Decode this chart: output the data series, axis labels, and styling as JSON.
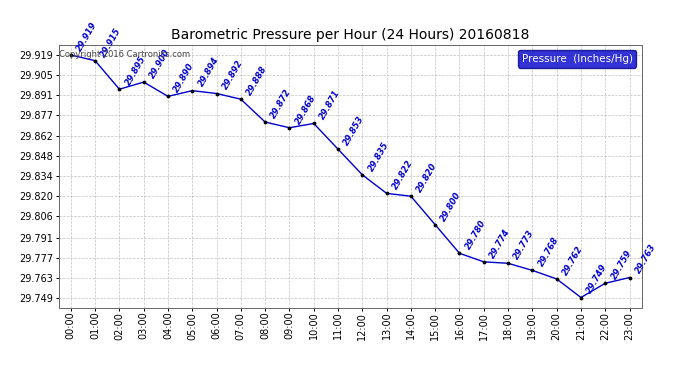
{
  "title": "Barometric Pressure per Hour (24 Hours) 20160818",
  "copyright": "Copyright 2016 Cartronics.com",
  "legend_label": "Pressure  (Inches/Hg)",
  "hours": [
    0,
    1,
    2,
    3,
    4,
    5,
    6,
    7,
    8,
    9,
    10,
    11,
    12,
    13,
    14,
    15,
    16,
    17,
    18,
    19,
    20,
    21,
    22,
    23
  ],
  "x_labels": [
    "00:00",
    "01:00",
    "02:00",
    "03:00",
    "04:00",
    "05:00",
    "06:00",
    "07:00",
    "08:00",
    "09:00",
    "10:00",
    "11:00",
    "12:00",
    "13:00",
    "14:00",
    "15:00",
    "16:00",
    "17:00",
    "18:00",
    "19:00",
    "20:00",
    "21:00",
    "22:00",
    "23:00"
  ],
  "pressure": [
    29.919,
    29.915,
    29.895,
    29.9,
    29.89,
    29.894,
    29.892,
    29.888,
    29.872,
    29.868,
    29.871,
    29.853,
    29.835,
    29.822,
    29.82,
    29.8,
    29.78,
    29.774,
    29.773,
    29.768,
    29.762,
    29.749,
    29.759,
    29.763
  ],
  "ylim_min": 29.742,
  "ylim_max": 29.926,
  "y_ticks": [
    29.749,
    29.763,
    29.777,
    29.791,
    29.806,
    29.82,
    29.834,
    29.848,
    29.862,
    29.877,
    29.891,
    29.905,
    29.919
  ],
  "line_color": "#0000cc",
  "marker_color": "#000000",
  "bg_color": "#ffffff",
  "grid_color": "#b0b0b0",
  "title_color": "#000000",
  "label_color": "#0000cc",
  "legend_bg": "#0000cc",
  "legend_fg": "#ffffff"
}
